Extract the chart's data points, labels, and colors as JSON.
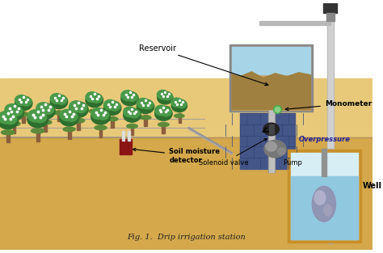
{
  "title": "Fig. 1.  Drip irrigation station",
  "labels": {
    "reservoir": "Reservoir",
    "monometer": "Monometer",
    "solenoid": "Solenoid valve",
    "soil": "Soil moisture\ndetector",
    "overpressure": "Overpressure",
    "pump": "Pump",
    "well": "Well"
  },
  "colors": {
    "sky": "#ffffff",
    "ground": "#e8c97a",
    "ground_dark": "#d4a84b",
    "tree_trunk": "#8B5E3C",
    "tree_dark": "#2d6e2d",
    "tree_light": "#4a9a4a",
    "water_blue": "#a8d4e8",
    "reservoir_brown": "#a08040",
    "reservoir_sand": "#c8a060",
    "wall_dark": "#445588",
    "wall_darker": "#334477",
    "pipe_gray": "#b0b0b0",
    "pipe_dark": "#444444",
    "solenoid_dark": "#333333",
    "well_border": "#c8902a",
    "well_water": "#90c8e0",
    "sensor_red": "#8B1515",
    "sensor_light": "#cc3333",
    "grass": "#5a8a3a"
  },
  "fig_width": 4.74,
  "fig_height": 3.13
}
